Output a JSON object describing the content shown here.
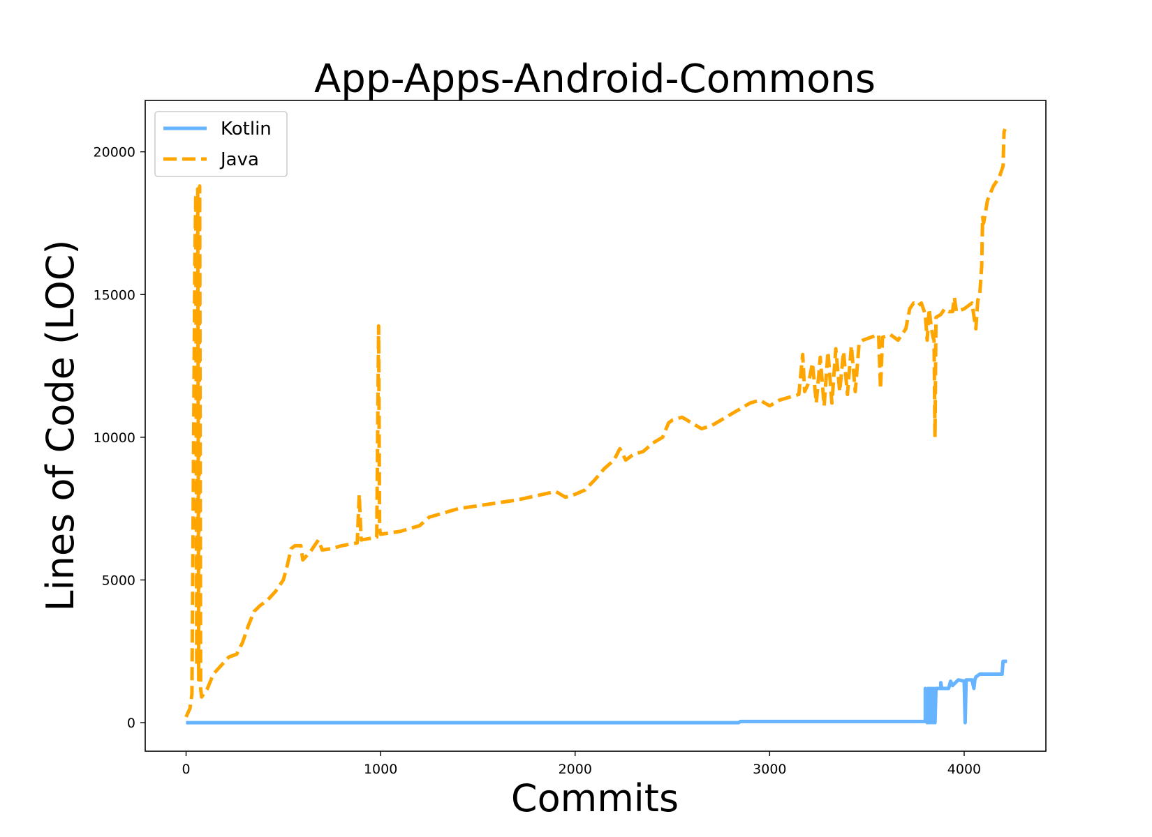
{
  "chart_data": {
    "type": "line",
    "title": "App-Apps-Android-Commons",
    "xlabel": "Commits",
    "ylabel": "Lines of Code (LOC)",
    "xlim": [
      -210,
      4420
    ],
    "ylim": [
      -1000,
      21800
    ],
    "xticks": [
      0,
      1000,
      2000,
      3000,
      4000
    ],
    "yticks": [
      0,
      5000,
      10000,
      15000,
      20000
    ],
    "legend_position": "top-left",
    "series": [
      {
        "name": "Kotlin",
        "color": "#66b3ff",
        "dash": "solid",
        "points": [
          [
            0,
            0
          ],
          [
            2840,
            0
          ],
          [
            2850,
            40
          ],
          [
            3800,
            40
          ],
          [
            3800,
            1200
          ],
          [
            3810,
            0
          ],
          [
            3815,
            1200
          ],
          [
            3820,
            0
          ],
          [
            3825,
            1200
          ],
          [
            3830,
            0
          ],
          [
            3835,
            1200
          ],
          [
            3840,
            0
          ],
          [
            3845,
            1200
          ],
          [
            3850,
            0
          ],
          [
            3855,
            1200
          ],
          [
            3880,
            1200
          ],
          [
            3880,
            1400
          ],
          [
            3885,
            1200
          ],
          [
            3920,
            1200
          ],
          [
            3930,
            1450
          ],
          [
            3940,
            1300
          ],
          [
            3970,
            1500
          ],
          [
            4000,
            1450
          ],
          [
            4005,
            0
          ],
          [
            4010,
            1500
          ],
          [
            4040,
            1500
          ],
          [
            4050,
            1200
          ],
          [
            4055,
            1500
          ],
          [
            4060,
            1600
          ],
          [
            4070,
            1650
          ],
          [
            4080,
            1700
          ],
          [
            4195,
            1700
          ],
          [
            4200,
            2150
          ],
          [
            4220,
            2150
          ]
        ]
      },
      {
        "name": "Java",
        "color": "#ffa500",
        "dash": "dashed",
        "points": [
          [
            0,
            200
          ],
          [
            20,
            500
          ],
          [
            30,
            1000
          ],
          [
            45,
            16000
          ],
          [
            50,
            18500
          ],
          [
            55,
            2000
          ],
          [
            60,
            18700
          ],
          [
            65,
            1500
          ],
          [
            70,
            18800
          ],
          [
            75,
            1200
          ],
          [
            80,
            900
          ],
          [
            110,
            1200
          ],
          [
            140,
            1700
          ],
          [
            180,
            2000
          ],
          [
            220,
            2300
          ],
          [
            260,
            2400
          ],
          [
            290,
            2800
          ],
          [
            320,
            3400
          ],
          [
            350,
            3900
          ],
          [
            380,
            4100
          ],
          [
            420,
            4300
          ],
          [
            460,
            4600
          ],
          [
            500,
            5000
          ],
          [
            520,
            5500
          ],
          [
            540,
            6100
          ],
          [
            560,
            6200
          ],
          [
            590,
            6200
          ],
          [
            600,
            5700
          ],
          [
            640,
            6000
          ],
          [
            680,
            6400
          ],
          [
            700,
            6050
          ],
          [
            750,
            6100
          ],
          [
            800,
            6200
          ],
          [
            880,
            6300
          ],
          [
            890,
            8000
          ],
          [
            900,
            6400
          ],
          [
            980,
            6500
          ],
          [
            990,
            13900
          ],
          [
            995,
            6800
          ],
          [
            1000,
            6600
          ],
          [
            1100,
            6700
          ],
          [
            1200,
            6900
          ],
          [
            1250,
            7200
          ],
          [
            1300,
            7300
          ],
          [
            1350,
            7400
          ],
          [
            1400,
            7500
          ],
          [
            1500,
            7600
          ],
          [
            1600,
            7700
          ],
          [
            1700,
            7800
          ],
          [
            1800,
            7950
          ],
          [
            1900,
            8100
          ],
          [
            1950,
            7900
          ],
          [
            2000,
            8000
          ],
          [
            2050,
            8150
          ],
          [
            2100,
            8500
          ],
          [
            2150,
            8900
          ],
          [
            2200,
            9200
          ],
          [
            2230,
            9600
          ],
          [
            2260,
            9200
          ],
          [
            2300,
            9400
          ],
          [
            2350,
            9500
          ],
          [
            2400,
            9800
          ],
          [
            2450,
            10000
          ],
          [
            2480,
            10500
          ],
          [
            2500,
            10600
          ],
          [
            2550,
            10700
          ],
          [
            2600,
            10500
          ],
          [
            2650,
            10300
          ],
          [
            2700,
            10400
          ],
          [
            2750,
            10600
          ],
          [
            2800,
            10800
          ],
          [
            2850,
            11000
          ],
          [
            2900,
            11200
          ],
          [
            2950,
            11300
          ],
          [
            3000,
            11100
          ],
          [
            3050,
            11300
          ],
          [
            3100,
            11400
          ],
          [
            3150,
            11500
          ],
          [
            3170,
            12900
          ],
          [
            3180,
            11600
          ],
          [
            3200,
            11900
          ],
          [
            3220,
            12600
          ],
          [
            3240,
            11200
          ],
          [
            3260,
            12800
          ],
          [
            3280,
            11100
          ],
          [
            3300,
            13000
          ],
          [
            3320,
            11200
          ],
          [
            3340,
            13100
          ],
          [
            3360,
            11600
          ],
          [
            3380,
            13000
          ],
          [
            3400,
            11500
          ],
          [
            3420,
            13200
          ],
          [
            3440,
            11600
          ],
          [
            3460,
            13300
          ],
          [
            3480,
            13400
          ],
          [
            3520,
            13500
          ],
          [
            3560,
            13600
          ],
          [
            3570,
            11700
          ],
          [
            3580,
            13500
          ],
          [
            3620,
            13600
          ],
          [
            3660,
            13400
          ],
          [
            3700,
            13800
          ],
          [
            3720,
            14500
          ],
          [
            3740,
            14700
          ],
          [
            3760,
            14600
          ],
          [
            3780,
            14700
          ],
          [
            3800,
            14300
          ],
          [
            3810,
            13400
          ],
          [
            3820,
            14500
          ],
          [
            3830,
            13900
          ],
          [
            3840,
            13500
          ],
          [
            3845,
            13400
          ],
          [
            3850,
            10000
          ],
          [
            3855,
            14200
          ],
          [
            3880,
            14300
          ],
          [
            3900,
            14500
          ],
          [
            3920,
            14400
          ],
          [
            3940,
            14400
          ],
          [
            3950,
            14900
          ],
          [
            3960,
            14400
          ],
          [
            4000,
            14500
          ],
          [
            4040,
            14700
          ],
          [
            4060,
            13800
          ],
          [
            4070,
            14800
          ],
          [
            4080,
            15000
          ],
          [
            4090,
            16000
          ],
          [
            4095,
            17700
          ],
          [
            4100,
            17500
          ],
          [
            4120,
            18300
          ],
          [
            4150,
            18800
          ],
          [
            4180,
            19100
          ],
          [
            4200,
            19500
          ],
          [
            4205,
            20700
          ],
          [
            4210,
            20800
          ]
        ]
      }
    ]
  }
}
